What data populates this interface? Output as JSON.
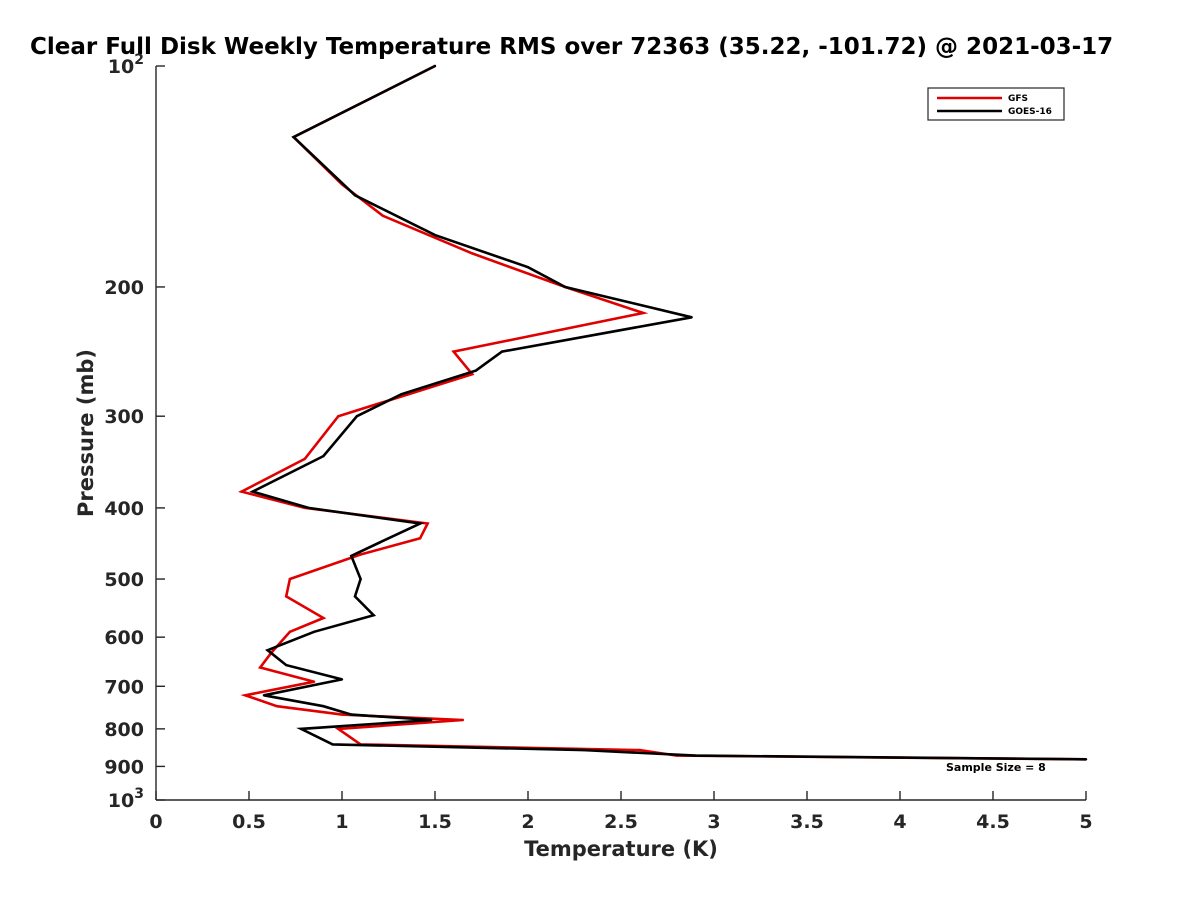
{
  "chart_data": {
    "type": "line",
    "title": "Clear Full Disk Weekly Temperature RMS over 72363 (35.22, -101.72) @ 2021-03-17",
    "xlabel": "Temperature (K)",
    "ylabel": "Pressure (mb)",
    "xlim": [
      0,
      5
    ],
    "ylim": [
      100,
      1000
    ],
    "y_scale": "log",
    "y_reversed": true,
    "x_ticks": [
      "0",
      "0.5",
      "1",
      "1.5",
      "2",
      "2.5",
      "3",
      "3.5",
      "4",
      "4.5",
      "5"
    ],
    "y_ticks": [
      {
        "value": 100,
        "base": "10",
        "exp": "2"
      },
      {
        "value": 200,
        "label": "200"
      },
      {
        "value": 300,
        "label": "300"
      },
      {
        "value": 400,
        "label": "400"
      },
      {
        "value": 500,
        "label": "500"
      },
      {
        "value": 600,
        "label": "600"
      },
      {
        "value": 700,
        "label": "700"
      },
      {
        "value": 800,
        "label": "800"
      },
      {
        "value": 900,
        "label": "900"
      },
      {
        "value": 1000,
        "base": "10",
        "exp": "3"
      }
    ],
    "grid": false,
    "legend_position": "top-right",
    "annotation": "Sample Size = 8",
    "series": [
      {
        "name": "GFS",
        "color": "#e00000",
        "points": [
          [
            1.5,
            100
          ],
          [
            0.74,
            125
          ],
          [
            1.0,
            145
          ],
          [
            1.22,
            160
          ],
          [
            1.7,
            180
          ],
          [
            2.2,
            200
          ],
          [
            2.62,
            217
          ],
          [
            1.6,
            245
          ],
          [
            1.7,
            263
          ],
          [
            1.3,
            283
          ],
          [
            0.98,
            300
          ],
          [
            0.8,
            343
          ],
          [
            0.46,
            380
          ],
          [
            0.8,
            400
          ],
          [
            1.46,
            420
          ],
          [
            1.42,
            440
          ],
          [
            1.1,
            463
          ],
          [
            0.72,
            500
          ],
          [
            0.7,
            528
          ],
          [
            0.9,
            565
          ],
          [
            0.72,
            590
          ],
          [
            0.62,
            630
          ],
          [
            0.56,
            660
          ],
          [
            0.85,
            690
          ],
          [
            0.48,
            720
          ],
          [
            0.65,
            745
          ],
          [
            1.0,
            765
          ],
          [
            1.65,
            778
          ],
          [
            0.98,
            800
          ],
          [
            1.1,
            840
          ],
          [
            2.6,
            855
          ],
          [
            2.8,
            870
          ],
          [
            5.0,
            880
          ]
        ]
      },
      {
        "name": "GOES-16",
        "color": "#000000",
        "points": [
          [
            1.5,
            100
          ],
          [
            0.74,
            125
          ],
          [
            1.07,
            150
          ],
          [
            1.5,
            170
          ],
          [
            2.0,
            188
          ],
          [
            2.2,
            200
          ],
          [
            2.88,
            220
          ],
          [
            1.86,
            245
          ],
          [
            1.72,
            260
          ],
          [
            1.32,
            280
          ],
          [
            1.08,
            300
          ],
          [
            0.9,
            340
          ],
          [
            0.52,
            380
          ],
          [
            0.82,
            400
          ],
          [
            1.42,
            420
          ],
          [
            1.25,
            440
          ],
          [
            1.05,
            465
          ],
          [
            1.1,
            500
          ],
          [
            1.07,
            528
          ],
          [
            1.17,
            560
          ],
          [
            0.85,
            590
          ],
          [
            0.6,
            625
          ],
          [
            0.7,
            655
          ],
          [
            1.0,
            685
          ],
          [
            0.58,
            720
          ],
          [
            0.9,
            745
          ],
          [
            1.05,
            765
          ],
          [
            1.48,
            778
          ],
          [
            0.78,
            800
          ],
          [
            0.95,
            840
          ],
          [
            2.3,
            855
          ],
          [
            2.9,
            870
          ],
          [
            5.0,
            880
          ]
        ]
      }
    ]
  }
}
